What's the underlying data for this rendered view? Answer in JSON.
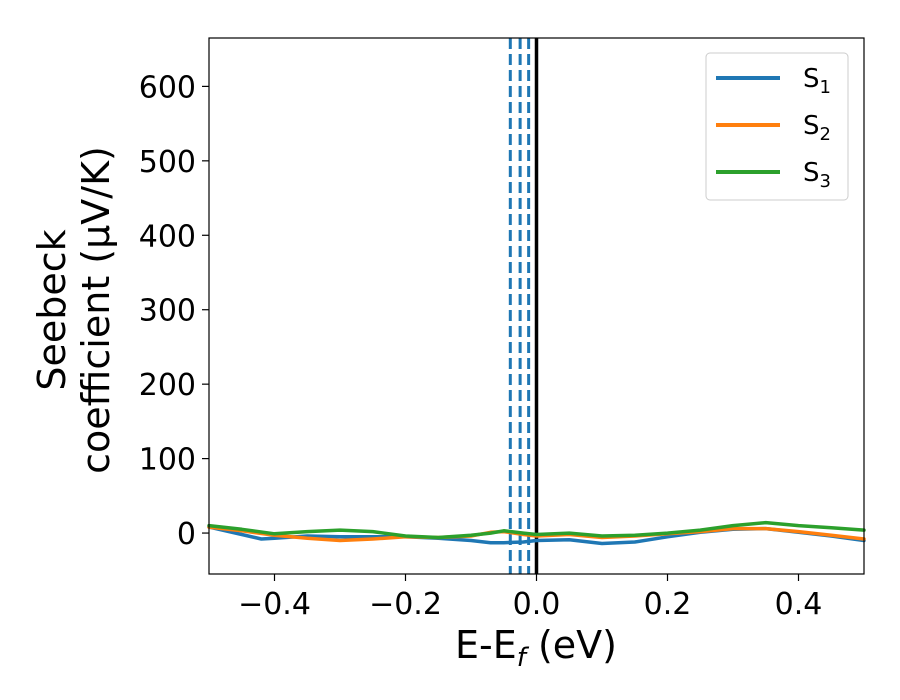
{
  "chart_data": {
    "type": "line",
    "xlabel": {
      "base": "E-E",
      "sub": "f",
      "tail": " (eV)"
    },
    "ylabel": {
      "line1": "Seebeck",
      "line2": "coefficient  (μV/K)"
    },
    "xlim": [
      -0.5,
      0.5
    ],
    "ylim": [
      -55,
      665
    ],
    "xticks": [
      {
        "value": -0.4,
        "label": "−0.4"
      },
      {
        "value": -0.2,
        "label": "−0.2"
      },
      {
        "value": 0.0,
        "label": "0.0"
      },
      {
        "value": 0.2,
        "label": "0.2"
      },
      {
        "value": 0.4,
        "label": "0.4"
      }
    ],
    "yticks": [
      {
        "value": 0,
        "label": "0"
      },
      {
        "value": 100,
        "label": "100"
      },
      {
        "value": 200,
        "label": "200"
      },
      {
        "value": 300,
        "label": "300"
      },
      {
        "value": 400,
        "label": "400"
      },
      {
        "value": 500,
        "label": "500"
      },
      {
        "value": 600,
        "label": "600"
      }
    ],
    "grid": false,
    "legend_position": "top-right",
    "vlines": [
      {
        "x": -0.04,
        "style": "dashed",
        "color": "#1f77b4"
      },
      {
        "x": -0.025,
        "style": "dashed",
        "color": "#1f77b4"
      },
      {
        "x": -0.012,
        "style": "dashed",
        "color": "#1f77b4"
      },
      {
        "x": 0.0,
        "style": "solid",
        "color": "#000000"
      }
    ],
    "series": [
      {
        "name": "S",
        "sub": "1",
        "color": "#1f77b4",
        "x": [
          -0.5,
          -0.45,
          -0.42,
          -0.4,
          -0.35,
          -0.3,
          -0.25,
          -0.2,
          -0.15,
          -0.1,
          -0.07,
          -0.05,
          -0.02,
          0.0,
          0.05,
          0.1,
          0.15,
          0.2,
          0.25,
          0.3,
          0.35,
          0.4,
          0.45,
          0.5
        ],
        "y": [
          8,
          -2,
          -8,
          -7,
          -4,
          -5,
          -5,
          -5,
          -7,
          -10,
          -13,
          -13,
          -12,
          -10,
          -9,
          -14,
          -12,
          -5,
          1,
          5,
          6,
          1,
          -4,
          -10
        ]
      },
      {
        "name": "S",
        "sub": "2",
        "color": "#ff7f0e",
        "x": [
          -0.5,
          -0.45,
          -0.4,
          -0.35,
          -0.3,
          -0.25,
          -0.2,
          -0.15,
          -0.1,
          -0.07,
          -0.05,
          -0.02,
          0.0,
          0.05,
          0.1,
          0.15,
          0.2,
          0.25,
          0.3,
          0.35,
          0.4,
          0.45,
          0.5
        ],
        "y": [
          8,
          3,
          -3,
          -7,
          -10,
          -8,
          -5,
          -6,
          -4,
          1,
          2,
          -2,
          -4,
          -2,
          -6,
          -4,
          -1,
          2,
          6,
          6,
          2,
          -3,
          -8
        ]
      },
      {
        "name": "S",
        "sub": "3",
        "color": "#2ca02c",
        "x": [
          -0.5,
          -0.45,
          -0.4,
          -0.35,
          -0.3,
          -0.25,
          -0.2,
          -0.15,
          -0.1,
          -0.07,
          -0.05,
          -0.02,
          0.0,
          0.05,
          0.1,
          0.15,
          0.2,
          0.25,
          0.3,
          0.35,
          0.4,
          0.45,
          0.5
        ],
        "y": [
          10,
          5,
          -1,
          2,
          4,
          2,
          -4,
          -6,
          -3,
          0,
          3,
          0,
          -2,
          0,
          -4,
          -3,
          0,
          4,
          10,
          14,
          10,
          7,
          4
        ]
      }
    ]
  }
}
